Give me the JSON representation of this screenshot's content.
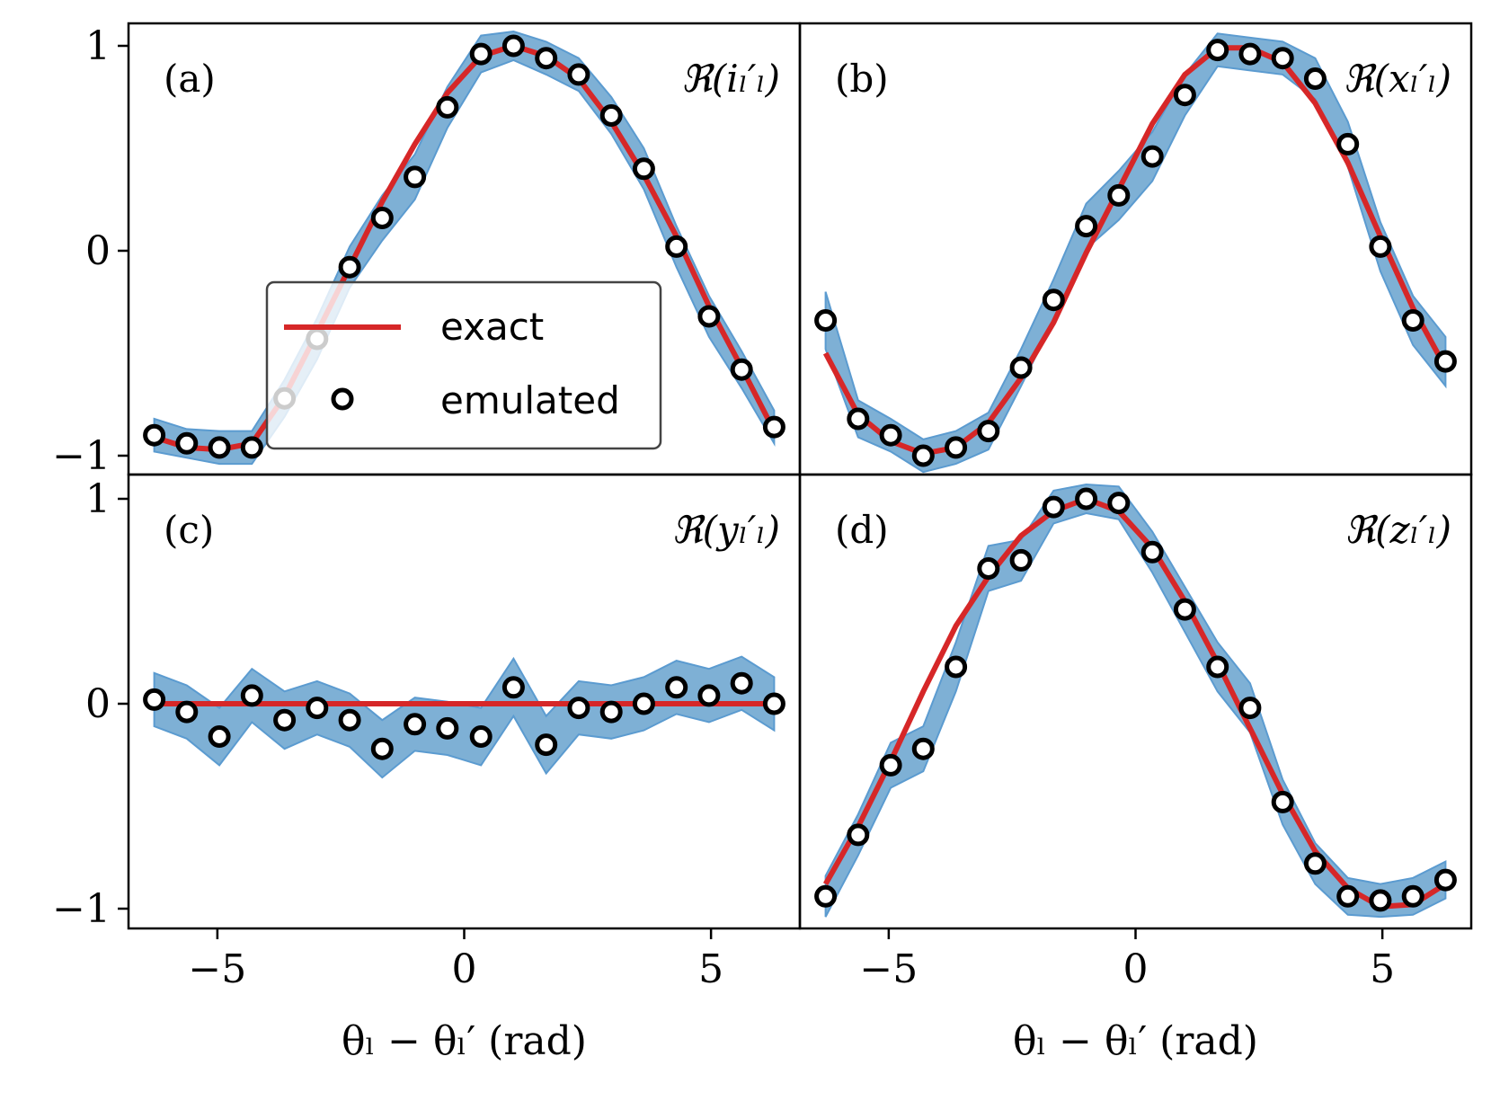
{
  "chart_data": [
    {
      "type": "line",
      "panel": "(a)",
      "label": "ℜ(iₗ′ₗ)",
      "xlabel": "θₗ − θₗ′ (rad)",
      "xlim": [
        -6.8,
        6.8
      ],
      "ylim": [
        -1.05,
        1.1
      ],
      "xticks": [
        -5,
        0,
        5
      ],
      "xtick_labels": [
        "−5",
        "0",
        "5"
      ],
      "yticks": [
        -1,
        0,
        1
      ],
      "ytick_labels": [
        "−1",
        "0",
        "1"
      ],
      "x": [
        -6.28,
        -5.62,
        -4.96,
        -4.3,
        -3.64,
        -2.98,
        -2.32,
        -1.66,
        -1.0,
        -0.34,
        0.34,
        1.0,
        1.66,
        2.32,
        2.98,
        3.64,
        4.3,
        4.96,
        5.62,
        6.28
      ],
      "exact": [
        -0.91,
        -0.96,
        -0.97,
        -0.94,
        -0.71,
        -0.4,
        -0.08,
        0.24,
        0.52,
        0.77,
        0.95,
        1.0,
        0.95,
        0.84,
        0.63,
        0.37,
        0.07,
        -0.27,
        -0.57,
        -0.88
      ],
      "emulated": [
        -0.9,
        -0.94,
        -0.96,
        -0.96,
        -0.72,
        -0.43,
        -0.08,
        0.16,
        0.36,
        0.7,
        0.96,
        1.0,
        0.94,
        0.86,
        0.66,
        0.4,
        0.02,
        -0.32,
        -0.58,
        -0.86
      ],
      "band_half_width": [
        0.08,
        0.07,
        0.08,
        0.08,
        0.09,
        0.1,
        0.1,
        0.11,
        0.11,
        0.1,
        0.09,
        0.07,
        0.08,
        0.08,
        0.09,
        0.1,
        0.1,
        0.1,
        0.09,
        0.08
      ]
    },
    {
      "type": "line",
      "panel": "(b)",
      "label": "ℜ(xₗ′ₗ)",
      "xlabel": "θₗ − θₗ′ (rad)",
      "xlim": [
        -6.8,
        6.8
      ],
      "ylim": [
        -1.05,
        1.1
      ],
      "xticks": [
        -5,
        0,
        5
      ],
      "xtick_labels": [
        "−5",
        "0",
        "5"
      ],
      "yticks": [
        -1,
        0,
        1
      ],
      "ytick_labels": [
        "−1",
        "0",
        "1"
      ],
      "x": [
        -6.28,
        -5.62,
        -4.96,
        -4.3,
        -3.64,
        -2.98,
        -2.32,
        -1.66,
        -1.0,
        -0.34,
        0.34,
        1.0,
        1.66,
        2.32,
        2.98,
        3.64,
        4.3,
        4.96,
        5.62,
        6.28
      ],
      "exact": [
        -0.5,
        -0.8,
        -0.93,
        -0.99,
        -0.96,
        -0.84,
        -0.62,
        -0.35,
        -0.01,
        0.3,
        0.62,
        0.86,
        0.99,
        0.99,
        0.92,
        0.72,
        0.43,
        0.07,
        -0.28,
        -0.57
      ],
      "emulated": [
        -0.34,
        -0.82,
        -0.9,
        -1.0,
        -0.96,
        -0.88,
        -0.57,
        -0.24,
        0.12,
        0.27,
        0.46,
        0.76,
        0.98,
        0.96,
        0.94,
        0.84,
        0.52,
        0.02,
        -0.34,
        -0.54
      ],
      "band_half_width": [
        0.14,
        0.09,
        0.08,
        0.08,
        0.08,
        0.09,
        0.09,
        0.1,
        0.11,
        0.12,
        0.12,
        0.1,
        0.08,
        0.08,
        0.08,
        0.1,
        0.11,
        0.12,
        0.12,
        0.12
      ]
    },
    {
      "type": "line",
      "panel": "(c)",
      "label": "ℜ(yₗ′ₗ)",
      "xlabel": "θₗ − θₗ′ (rad)",
      "xlim": [
        -6.8,
        6.8
      ],
      "ylim": [
        -1.1,
        1.1
      ],
      "xticks": [
        -5,
        0,
        5
      ],
      "xtick_labels": [
        "−5",
        "0",
        "5"
      ],
      "yticks": [
        -1,
        0,
        1
      ],
      "ytick_labels": [
        "−1",
        "0",
        "1"
      ],
      "x": [
        -6.28,
        -5.62,
        -4.96,
        -4.3,
        -3.64,
        -2.98,
        -2.32,
        -1.66,
        -1.0,
        -0.34,
        0.34,
        1.0,
        1.66,
        2.32,
        2.98,
        3.64,
        4.3,
        4.96,
        5.62,
        6.28
      ],
      "exact": [
        0,
        0,
        0,
        0,
        0,
        0,
        0,
        0,
        0,
        0,
        0,
        0,
        0,
        0,
        0,
        0,
        0,
        0,
        0,
        0
      ],
      "emulated": [
        0.02,
        -0.04,
        -0.16,
        0.04,
        -0.08,
        -0.02,
        -0.08,
        -0.22,
        -0.1,
        -0.12,
        -0.16,
        0.08,
        -0.2,
        -0.02,
        -0.04,
        0.0,
        0.08,
        0.04,
        0.1,
        0.0
      ],
      "band_half_width": [
        0.13,
        0.13,
        0.14,
        0.13,
        0.14,
        0.13,
        0.13,
        0.14,
        0.13,
        0.13,
        0.14,
        0.14,
        0.14,
        0.13,
        0.13,
        0.13,
        0.13,
        0.13,
        0.13,
        0.13
      ]
    },
    {
      "type": "line",
      "panel": "(d)",
      "label": "ℜ(zₗ′ₗ)",
      "xlabel": "θₗ − θₗ′ (rad)",
      "xlim": [
        -6.8,
        6.8
      ],
      "ylim": [
        -1.1,
        1.1
      ],
      "xticks": [
        -5,
        0,
        5
      ],
      "xtick_labels": [
        "−5",
        "0",
        "5"
      ],
      "yticks": [
        -1,
        0,
        1
      ],
      "ytick_labels": [
        "−1",
        "0",
        "1"
      ],
      "x": [
        -6.28,
        -5.62,
        -4.96,
        -4.3,
        -3.64,
        -2.98,
        -2.32,
        -1.66,
        -1.0,
        -0.34,
        0.34,
        1.0,
        1.66,
        2.32,
        2.98,
        3.64,
        4.3,
        4.96,
        5.62,
        6.28
      ],
      "exact": [
        -0.88,
        -0.6,
        -0.28,
        0.06,
        0.38,
        0.62,
        0.82,
        0.94,
        1.0,
        0.94,
        0.76,
        0.5,
        0.2,
        -0.12,
        -0.44,
        -0.72,
        -0.9,
        -0.99,
        -0.98,
        -0.88
      ],
      "emulated": [
        -0.94,
        -0.64,
        -0.3,
        -0.22,
        0.18,
        0.66,
        0.7,
        0.96,
        1.0,
        0.98,
        0.74,
        0.46,
        0.18,
        -0.02,
        -0.48,
        -0.78,
        -0.94,
        -0.96,
        -0.94,
        -0.86
      ],
      "band_half_width": [
        0.1,
        0.1,
        0.11,
        0.11,
        0.12,
        0.11,
        0.1,
        0.08,
        0.07,
        0.08,
        0.1,
        0.11,
        0.12,
        0.12,
        0.11,
        0.1,
        0.09,
        0.08,
        0.09,
        0.09
      ]
    }
  ],
  "legend": {
    "entries": [
      {
        "label": "exact",
        "color": "#d62728"
      },
      {
        "label": "emulated",
        "color": "#000000"
      }
    ]
  },
  "colors": {
    "exact": "#d62728",
    "band_fill": "#7eb0d5",
    "band_edge": "#5b9bd0",
    "marker_edge": "#000000",
    "marker_face": "#ffffff"
  }
}
